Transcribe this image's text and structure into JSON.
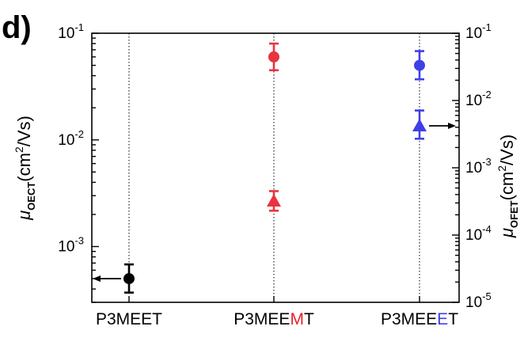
{
  "chart_data": {
    "type": "scatter",
    "panel_label": "d)",
    "categories": [
      {
        "segments": [
          {
            "text": "P3MEET",
            "color": "#000000"
          }
        ]
      },
      {
        "segments": [
          {
            "text": "P3MEE",
            "color": "#000000"
          },
          {
            "text": "M",
            "color": "#e8202a"
          },
          {
            "text": "T",
            "color": "#000000"
          }
        ]
      },
      {
        "segments": [
          {
            "text": "P3MEE",
            "color": "#000000"
          },
          {
            "text": "E",
            "color": "#3e3ee8"
          },
          {
            "text": "T",
            "color": "#000000"
          }
        ]
      }
    ],
    "left_axis": {
      "scale": "log",
      "range": [
        0.0003,
        0.1
      ],
      "ticks": [
        {
          "base": "10",
          "exp": "-3",
          "value": 0.001
        },
        {
          "base": "10",
          "exp": "-2",
          "value": 0.01
        },
        {
          "base": "10",
          "exp": "-1",
          "value": 0.1
        }
      ],
      "label": {
        "mu": "μ",
        "sub": "OECT",
        "main": "(cm",
        "sup": "2",
        "tail": "/Vs)"
      }
    },
    "right_axis": {
      "scale": "log",
      "range": [
        1e-05,
        0.1
      ],
      "ticks": [
        {
          "base": "10",
          "exp": "-5",
          "value": 1e-05
        },
        {
          "base": "10",
          "exp": "-4",
          "value": 0.0001
        },
        {
          "base": "10",
          "exp": "-3",
          "value": 0.001
        },
        {
          "base": "10",
          "exp": "-2",
          "value": 0.01
        },
        {
          "base": "10",
          "exp": "-1",
          "value": 0.1
        }
      ],
      "label": {
        "mu": "μ",
        "sub": "OFET",
        "main": "(cm",
        "sup": "2",
        "tail": "/Vs)"
      }
    },
    "series": [
      {
        "marker": "circle",
        "axis": "left",
        "points": [
          {
            "category": 0,
            "y": 0.0005,
            "err_low": 0.00037,
            "err_high": 0.00068,
            "color": "#000000"
          },
          {
            "category": 1,
            "y": 0.06,
            "err_low": 0.045,
            "err_high": 0.08,
            "color": "#e8343f"
          },
          {
            "category": 2,
            "y": 0.05,
            "err_low": 0.037,
            "err_high": 0.068,
            "color": "#3f3fe8"
          }
        ]
      },
      {
        "marker": "triangle",
        "axis": "right",
        "points": [
          {
            "category": 1,
            "y": 0.00032,
            "err_low": 0.00023,
            "err_high": 0.00045,
            "color": "#e8343f"
          },
          {
            "category": 2,
            "y": 0.0042,
            "err_low": 0.0027,
            "err_high": 0.0071,
            "color": "#3f3fe8"
          }
        ]
      }
    ],
    "axis_indicators": [
      {
        "category": 0,
        "y": 0.0005,
        "axis": "left",
        "direction": "left"
      },
      {
        "category": 2,
        "y": 0.0042,
        "axis": "right",
        "direction": "right"
      }
    ],
    "grid": "vertical dotted lines at each category"
  }
}
